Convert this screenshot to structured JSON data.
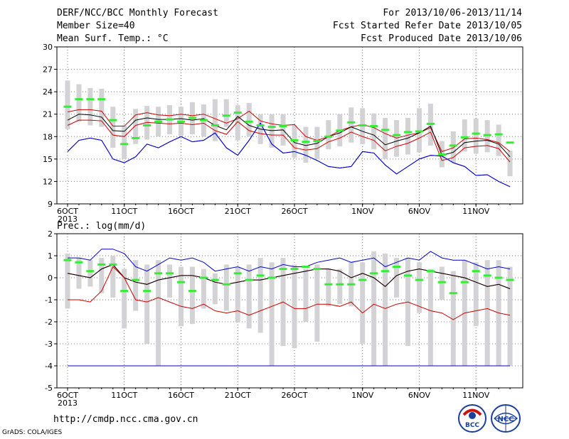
{
  "header": {
    "title": "DERF/NCC/BCC Monthly Forecast",
    "member_size": "Member Size=40",
    "variable": "Mean Surf. Temp.: °C",
    "forecast_period": "For 2013/10/06-2013/11/14",
    "fcst_started": "Fcst Started Refer Date 2013/10/05",
    "fcst_produced": "Fcst Produced Date 2013/10/06"
  },
  "footer": {
    "url": "http://cmdp.ncc.cma.gov.cn",
    "grads": "GrADS: COLA/IGES",
    "logo_left_text": "BCC",
    "logo_right_text": "NCC"
  },
  "colors": {
    "bar": "#d3d3d6",
    "median": "#33ee33",
    "envelope": "#0000cc",
    "mean": "#000000",
    "inner": "#cc0000",
    "grid": "#777777"
  },
  "chart_data": [
    {
      "type": "box-line",
      "title": "",
      "ylabel": "Mean Surf. Temp.: °C",
      "ylim": [
        9,
        30
      ],
      "yticks": [
        9,
        12,
        15,
        18,
        21,
        24,
        27,
        30
      ],
      "x_tick_labels": [
        "6OCT",
        "11OCT",
        "16OCT",
        "21OCT",
        "26OCT",
        "1NOV",
        "6NOV",
        "11NOV"
      ],
      "x_tick_days": [
        1,
        6,
        11,
        16,
        21,
        27,
        32,
        37
      ],
      "year_label": "2013",
      "grid": true,
      "days": 40,
      "series": [
        {
          "name": "",
          "role": "max",
          "values": [
            16,
            17.5,
            17.8,
            17.5,
            15,
            14.5,
            15.3,
            17,
            16.5,
            17.3,
            18,
            17.3,
            17.5,
            18.5,
            16.5,
            15.5,
            17.5,
            19.8,
            17,
            15.8,
            16,
            15.5,
            14.8,
            14,
            13.8,
            14,
            16,
            15.8,
            14.2,
            13,
            14,
            15,
            15.5,
            15.4,
            14.5,
            14,
            12.8,
            12.9,
            12,
            11.3
          ]
        },
        {
          "name": "",
          "role": "inner_upper",
          "values": [
            21.3,
            21.6,
            21.6,
            21.4,
            19.4,
            19.4,
            20.9,
            21.2,
            20.9,
            20.8,
            21,
            20.8,
            21,
            20.4,
            19.8,
            20.4,
            21.4,
            20.1,
            19.7,
            19.5,
            19.6,
            18,
            17.5,
            18,
            18.8,
            19.3,
            19.6,
            19.2,
            18.4,
            17.8,
            18.2,
            18.5,
            19.2,
            16,
            16.5,
            17.7,
            17.8,
            17.6,
            17.2,
            16
          ]
        },
        {
          "name": "",
          "role": "mean",
          "values": [
            20.2,
            21,
            20.9,
            20.6,
            18.8,
            18.7,
            20.2,
            20.5,
            20.3,
            20.3,
            20.4,
            20.2,
            20.4,
            19.5,
            18.9,
            20.7,
            19.5,
            19,
            18.8,
            18.9,
            17.2,
            16.8,
            17.1,
            18,
            18.5,
            19.3,
            18.7,
            18.2,
            16.9,
            17.4,
            17.8,
            18.5,
            19.4,
            15.5,
            15.9,
            17.2,
            17.4,
            17.5,
            17,
            15.3
          ]
        },
        {
          "name": "",
          "role": "inner_lower",
          "values": [
            19.5,
            20.2,
            20.2,
            20.1,
            18.2,
            18,
            19.5,
            19.9,
            19.8,
            19.7,
            19.8,
            19.6,
            19.8,
            18.8,
            18.3,
            20,
            18.8,
            18.4,
            18.2,
            18.2,
            16.5,
            16.2,
            16.4,
            17.3,
            17.8,
            18.6,
            18,
            17.5,
            16.1,
            16.7,
            17.1,
            17.8,
            18.6,
            14.8,
            15.2,
            16.5,
            16.7,
            16.8,
            16.4,
            14.6
          ]
        },
        {
          "name": "",
          "role": "min",
          "values": [
            16,
            17.5,
            17.8,
            17.5,
            15,
            14.5,
            15.3,
            17,
            16.5,
            17.3,
            18,
            17.3,
            17.5,
            18.5,
            16.5,
            15.5,
            17.5,
            19.8,
            17,
            15.8,
            16,
            15.5,
            14.8,
            14,
            13.8,
            14,
            16,
            15.8,
            14.2,
            13,
            14,
            15,
            15.5,
            15.4,
            14.5,
            14,
            12.8,
            12.9,
            12,
            11.3
          ]
        },
        {
          "name": "",
          "role": "median",
          "values": [
            22,
            23,
            23,
            23,
            20.2,
            17,
            17.8,
            19.5,
            20,
            20.3,
            20,
            20.5,
            20.2,
            19.5,
            20.8,
            21.2,
            20,
            19.5,
            19.3,
            19.4,
            17.5,
            17.3,
            17.4,
            18,
            18.8,
            19.9,
            19.5,
            19.4,
            18.9,
            18.2,
            18.6,
            18.7,
            19.7,
            15.6,
            16.8,
            17.9,
            18.4,
            18.2,
            18.3,
            17.2
          ]
        }
      ],
      "boxes": [
        [
          19,
          25.5
        ],
        [
          20,
          25
        ],
        [
          19.5,
          24.5
        ],
        [
          19.3,
          24.4
        ],
        [
          16.5,
          22
        ],
        [
          15,
          19.5
        ],
        [
          17,
          21.7
        ],
        [
          17.6,
          22.1
        ],
        [
          18,
          22
        ],
        [
          18.3,
          22.2
        ],
        [
          18.1,
          22
        ],
        [
          18.3,
          22.6
        ],
        [
          18,
          22.3
        ],
        [
          17.4,
          23
        ],
        [
          19.3,
          23
        ],
        [
          17.5,
          22.2
        ],
        [
          18,
          22.5
        ],
        [
          17,
          21
        ],
        [
          16.5,
          21
        ],
        [
          16.8,
          21
        ],
        [
          15.2,
          19.5
        ],
        [
          14.5,
          19.3
        ],
        [
          15,
          19.3
        ],
        [
          16.3,
          20.2
        ],
        [
          16.7,
          21
        ],
        [
          17.2,
          21.9
        ],
        [
          17,
          21.8
        ],
        [
          16.3,
          21.1
        ],
        [
          15,
          20.5
        ],
        [
          15.3,
          20.2
        ],
        [
          15.6,
          20.5
        ],
        [
          15.9,
          21.8
        ],
        [
          16.8,
          22.4
        ],
        [
          13.9,
          17.4
        ],
        [
          14.5,
          18.7
        ],
        [
          16,
          20.3
        ],
        [
          15.7,
          20.4
        ],
        [
          15.9,
          20.2
        ],
        [
          15.4,
          19.6
        ],
        [
          12.7,
          16.1
        ]
      ]
    },
    {
      "type": "box-line",
      "title": "",
      "ylabel": "Prec.: log(mm/d)",
      "ylim": [
        -5,
        2
      ],
      "yticks": [
        -5,
        -4,
        -3,
        -2,
        -1,
        0,
        1,
        2
      ],
      "x_tick_labels": [
        "6OCT",
        "11OCT",
        "16OCT",
        "21OCT",
        "26OCT",
        "1NOV",
        "6NOV",
        "11NOV"
      ],
      "x_tick_days": [
        1,
        6,
        11,
        16,
        21,
        27,
        32,
        37
      ],
      "year_label": "2013",
      "grid": true,
      "days": 40,
      "series": [
        {
          "name": "",
          "role": "max",
          "values": [
            0.9,
            0.9,
            0.8,
            1.3,
            1.3,
            1.1,
            0.5,
            0.3,
            0.6,
            0.9,
            0.8,
            0.9,
            0.7,
            0.3,
            0.4,
            0.5,
            0.3,
            0.5,
            0.4,
            0.6,
            0.5,
            0.5,
            0.7,
            0.8,
            0.9,
            0.7,
            0.8,
            0.9,
            0.5,
            0.7,
            0.9,
            0.8,
            1.2,
            0.9,
            0.8,
            0.8,
            0.6,
            0.4,
            0.5,
            0.4
          ]
        },
        {
          "name": "",
          "role": "inner_upper",
          "values": [
            0.2,
            0.1,
            0,
            0.4,
            0.6,
            0,
            -0.2,
            -0.3,
            -0.1,
            0,
            0.1,
            0.1,
            0,
            -0.2,
            -0.3,
            -0.2,
            -0.1,
            -0.1,
            0,
            0.1,
            0.2,
            0.3,
            0.4,
            0.4,
            0.3,
            0,
            0.2,
            0,
            -0.4,
            0.1,
            0.3,
            0.4,
            0.3,
            0.2,
            0.1,
            0,
            -0.2,
            -0.4,
            -0.3,
            -0.5
          ]
        },
        {
          "name": "",
          "role": "mean",
          "values": [
            0.2,
            0.1,
            0,
            0.4,
            0.6,
            0,
            -0.2,
            -0.3,
            -0.1,
            0,
            0.1,
            0.1,
            0,
            -0.2,
            -0.3,
            -0.2,
            -0.1,
            -0.1,
            0,
            0.1,
            0.2,
            0.3,
            0.4,
            0.4,
            0.3,
            0,
            0.2,
            0,
            -0.4,
            0.1,
            0.3,
            0.4,
            0.3,
            0.2,
            0.1,
            0,
            -0.2,
            -0.4,
            -0.3,
            -0.5
          ]
        },
        {
          "name": "",
          "role": "inner_lower",
          "values": [
            -1,
            -1,
            -1.1,
            -0.6,
            0.5,
            0,
            -1,
            -1.1,
            -0.9,
            -1.1,
            -1.3,
            -1.4,
            -1.2,
            -1.5,
            -1.6,
            -1.5,
            -1.7,
            -1.5,
            -1.3,
            -1.1,
            -1.4,
            -1.4,
            -1.2,
            -1.2,
            -1.3,
            -1.1,
            -1.6,
            -1.2,
            -1.4,
            -1.2,
            -1.1,
            -1.3,
            -1.5,
            -1.6,
            -1.9,
            -1.6,
            -1.5,
            -1.4,
            -1.6,
            -1.7
          ]
        },
        {
          "name": "",
          "role": "min",
          "values": [
            -4,
            -4,
            -4,
            -4,
            -4,
            -4,
            -4,
            -4,
            -4,
            -4,
            -4,
            -4,
            -4,
            -4,
            -4,
            -4,
            -4,
            -4,
            -4,
            -4,
            -4,
            -4,
            -4,
            -4,
            -4,
            -4,
            -4,
            -4,
            -4,
            -4,
            -4,
            -4,
            -4,
            -4,
            -4,
            -4,
            -4,
            -4,
            -4,
            -4
          ]
        },
        {
          "name": "",
          "role": "median",
          "values": [
            0.8,
            0.7,
            0.3,
            0.6,
            0.6,
            -0.6,
            -0.1,
            -0.6,
            0.2,
            0.2,
            -0.2,
            -0.6,
            0,
            -0.1,
            -0.3,
            0.2,
            -0.1,
            0.1,
            0,
            0.4,
            0.4,
            0.5,
            0.4,
            -0.3,
            -0.3,
            -0.3,
            -0.1,
            0.2,
            0.3,
            0.5,
            0.1,
            -0.1,
            0.3,
            -0.2,
            -0.7,
            -0.2,
            0.3,
            0.1,
            0,
            -0.1
          ]
        }
      ],
      "boxes": [
        [
          -1.4,
          1.1
        ],
        [
          -0.5,
          0.9
        ],
        [
          -0.4,
          0.8
        ],
        [
          -0.7,
          0.9
        ],
        [
          -0.9,
          1
        ],
        [
          -2.3,
          0.4
        ],
        [
          -1.5,
          0.8
        ],
        [
          -3,
          0.6
        ],
        [
          -4,
          0.8
        ],
        [
          -0.9,
          0.6
        ],
        [
          -2.2,
          0.5
        ],
        [
          -2.1,
          0.5
        ],
        [
          -1.4,
          0.4
        ],
        [
          -1.2,
          0.2
        ],
        [
          -1.5,
          0.6
        ],
        [
          -2,
          0.5
        ],
        [
          -2.3,
          0.6
        ],
        [
          -2.5,
          0.9
        ],
        [
          -4,
          0.7
        ],
        [
          -3.1,
          0.9
        ],
        [
          -3.2,
          0.6
        ],
        [
          -2,
          0.4
        ],
        [
          -2.9,
          0.6
        ],
        [
          -1.3,
          0.4
        ],
        [
          -1.2,
          0.4
        ],
        [
          -1.3,
          0.7
        ],
        [
          -3,
          0.7
        ],
        [
          -4,
          1.2
        ],
        [
          -4,
          1.1
        ],
        [
          -0.9,
          0.9
        ],
        [
          -3.1,
          0.9
        ],
        [
          -1.6,
          0.7
        ],
        [
          -4,
          0.4
        ],
        [
          -1,
          0.5
        ],
        [
          -4,
          0.3
        ],
        [
          -4,
          0.8
        ],
        [
          -2.2,
          0.7
        ],
        [
          -4,
          0.8
        ],
        [
          -4,
          0.8
        ],
        [
          -4,
          0.5
        ]
      ]
    }
  ]
}
